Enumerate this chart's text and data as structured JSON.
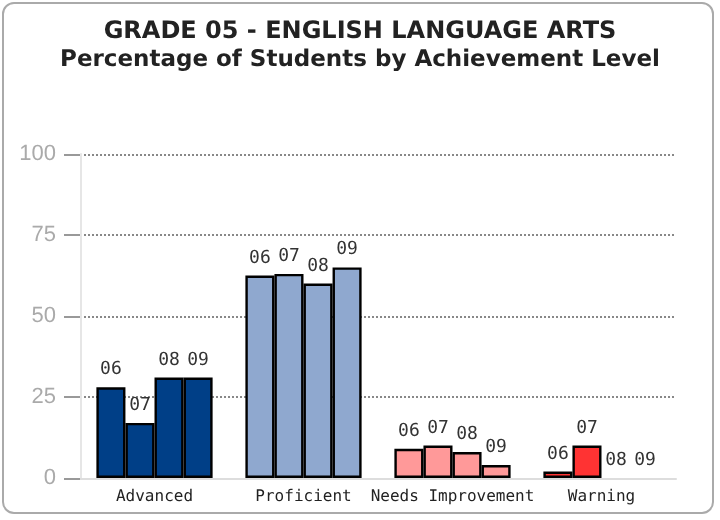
{
  "chart_data": {
    "type": "bar",
    "title": "GRADE 05 - ENGLISH LANGUAGE ARTS",
    "subtitle": "Percentage of Students by Achievement Level",
    "categories": [
      "Advanced",
      "Proficient",
      "Needs Improvement",
      "Warning"
    ],
    "series": [
      {
        "name": "06",
        "colors": [
          "#003f87",
          "#8fa8cf",
          "#ff9999",
          "#ff3333"
        ],
        "values": [
          28,
          62.5,
          9,
          2
        ]
      },
      {
        "name": "07",
        "colors": [
          "#003f87",
          "#8fa8cf",
          "#ff9999",
          "#ff3333"
        ],
        "values": [
          17,
          63,
          10,
          10
        ]
      },
      {
        "name": "08",
        "colors": [
          "#003f87",
          "#8fa8cf",
          "#ff9999",
          "#ff3333"
        ],
        "values": [
          31,
          60,
          8,
          0
        ]
      },
      {
        "name": "09",
        "colors": [
          "#003f87",
          "#8fa8cf",
          "#ff9999",
          "#ff3333"
        ],
        "values": [
          31,
          65,
          4,
          0
        ]
      }
    ],
    "ylim": [
      0,
      100
    ],
    "yticks": [
      0,
      25,
      50,
      75,
      100
    ],
    "grid": "y",
    "legend": false
  }
}
